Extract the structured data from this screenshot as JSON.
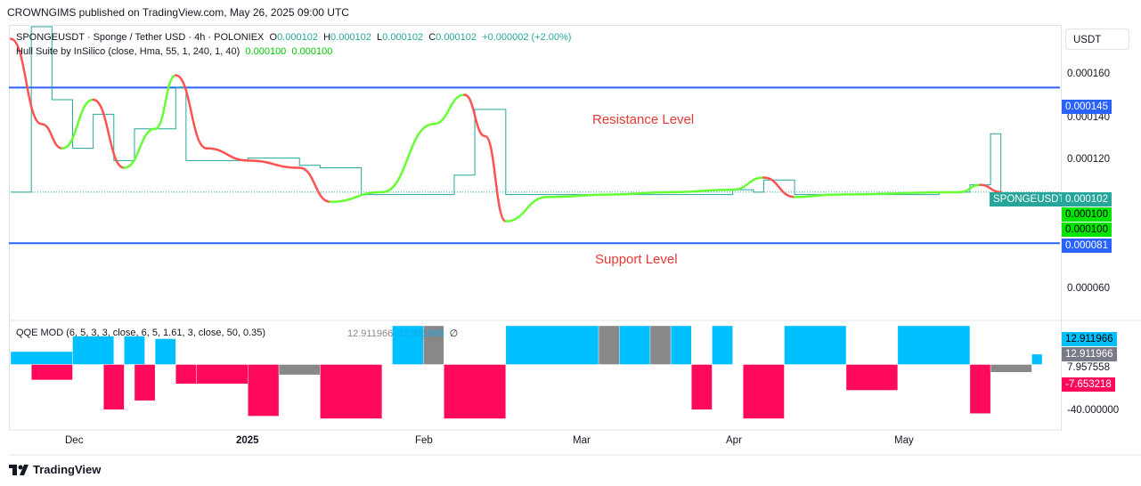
{
  "header": {
    "published": "CROWNGIMS published on TradingView.com, May 26, 2025 09:00 UTC"
  },
  "main_legend": {
    "symbol": "SPONGEUSDT · Sponge / Tether USD · 4h · POLONIEX",
    "o_label": "O",
    "o_value": "0.000102",
    "h_label": "H",
    "h_value": "0.000102",
    "l_label": "L",
    "l_value": "0.000102",
    "c_label": "C",
    "c_value": "0.000102",
    "change": "+0.000002 (+2.00%)"
  },
  "hull_legend": {
    "label": "Hull Suite by InSilico (close, Hma, 55, 1, 240, 1, 40)",
    "v1": "0.000100",
    "v2": "0.000100"
  },
  "qqe_legend": {
    "label": "QQE MOD (6, 5, 3, 3, close, 6, 5, 1.61, 3, close, 50, 0.35)",
    "v1": "12.911966",
    "v2": "12.911966",
    "v3": "∅"
  },
  "annotations": {
    "resistance": "Resistance Level",
    "support": "Support Level"
  },
  "price_axis": {
    "currency": "USDT",
    "ticks": [
      "0.000160",
      "0.000140",
      "0.000120",
      "0.000060"
    ],
    "resistance_badge": "0.000145",
    "support_badge": "0.000081",
    "symbol_badge_name": "SPONGEUSDT",
    "symbol_badge_value": "0.000102",
    "hull_badge_1": "0.000100",
    "hull_badge_2": "0.000100"
  },
  "qqe_axis": {
    "badge_1": "12.911966",
    "badge_2": "12.911966",
    "tick_1": "7.957558",
    "badge_3": "-7.653218",
    "tick_2": "-40.000000"
  },
  "time_axis": {
    "labels": [
      "Dec",
      "2025",
      "Feb",
      "Mar",
      "Apr",
      "May"
    ]
  },
  "footer": {
    "brand": "TradingView"
  },
  "colors": {
    "resistance_line": "#2962ff",
    "support_line": "#2962ff",
    "hull_up": "#66ff33",
    "hull_down": "#ff5252",
    "candle_up": "#26a69a",
    "candle_down": "#ef5350",
    "qqe_up": "#00bfff",
    "qqe_down": "#ff0a5a",
    "qqe_neutral": "#888888",
    "last_price": "#26a69a",
    "hull_badge": "#00e600"
  },
  "chart_data": {
    "type": "line",
    "price_ylim": [
      5e-05,
      0.00017
    ],
    "levels": {
      "resistance": 0.000145,
      "support": 8.1e-05,
      "last": 0.000102
    },
    "price_series": [
      {
        "t": 0,
        "v": 0.000102
      },
      {
        "t": 0.02,
        "v": 0.00017
      },
      {
        "t": 0.04,
        "v": 0.00014
      },
      {
        "t": 0.06,
        "v": 0.00012
      },
      {
        "t": 0.08,
        "v": 0.000134
      },
      {
        "t": 0.1,
        "v": 0.000115
      },
      {
        "t": 0.12,
        "v": 0.000128
      },
      {
        "t": 0.15,
        "v": 0.000128
      },
      {
        "t": 0.16,
        "v": 0.000145
      },
      {
        "t": 0.17,
        "v": 0.000115
      },
      {
        "t": 0.23,
        "v": 0.000116
      },
      {
        "t": 0.28,
        "v": 0.000113
      },
      {
        "t": 0.3,
        "v": 0.000112
      },
      {
        "t": 0.34,
        "v": 0.000101
      },
      {
        "t": 0.4,
        "v": 0.000101
      },
      {
        "t": 0.43,
        "v": 0.000109
      },
      {
        "t": 0.45,
        "v": 0.000136
      },
      {
        "t": 0.47,
        "v": 0.000136
      },
      {
        "t": 0.48,
        "v": 0.000101
      },
      {
        "t": 0.66,
        "v": 0.000101
      },
      {
        "t": 0.7,
        "v": 0.000103
      },
      {
        "t": 0.72,
        "v": 0.000102
      },
      {
        "t": 0.73,
        "v": 0.000107
      },
      {
        "t": 0.75,
        "v": 0.000107
      },
      {
        "t": 0.76,
        "v": 0.000101
      },
      {
        "t": 0.9,
        "v": 0.000102
      },
      {
        "t": 0.93,
        "v": 0.000105
      },
      {
        "t": 0.95,
        "v": 0.000126
      },
      {
        "t": 0.96,
        "v": 0.000102
      }
    ],
    "hull_series": [
      {
        "t": 0,
        "v": 0.000165
      },
      {
        "t": 0.03,
        "v": 0.00013
      },
      {
        "t": 0.05,
        "v": 0.00012
      },
      {
        "t": 0.08,
        "v": 0.00014
      },
      {
        "t": 0.11,
        "v": 0.000112
      },
      {
        "t": 0.14,
        "v": 0.000128
      },
      {
        "t": 0.16,
        "v": 0.00015
      },
      {
        "t": 0.19,
        "v": 0.00012
      },
      {
        "t": 0.23,
        "v": 0.000115
      },
      {
        "t": 0.28,
        "v": 0.000112
      },
      {
        "t": 0.31,
        "v": 9.8e-05
      },
      {
        "t": 0.36,
        "v": 0.000102
      },
      {
        "t": 0.41,
        "v": 0.00013
      },
      {
        "t": 0.44,
        "v": 0.000142
      },
      {
        "t": 0.46,
        "v": 0.000125
      },
      {
        "t": 0.48,
        "v": 9e-05
      },
      {
        "t": 0.52,
        "v": 0.0001
      },
      {
        "t": 0.58,
        "v": 0.000101
      },
      {
        "t": 0.64,
        "v": 0.000102
      },
      {
        "t": 0.7,
        "v": 0.000103
      },
      {
        "t": 0.73,
        "v": 0.000108
      },
      {
        "t": 0.76,
        "v": 0.0001
      },
      {
        "t": 0.8,
        "v": 0.000101
      },
      {
        "t": 0.92,
        "v": 0.000102
      },
      {
        "t": 0.94,
        "v": 0.000105
      },
      {
        "t": 0.96,
        "v": 0.000102
      }
    ],
    "qqe_ylim": [
      -50,
      30
    ],
    "qqe_segments": [
      {
        "t0": 0.0,
        "t1": 0.06,
        "v": 10,
        "c": "up"
      },
      {
        "t0": 0.02,
        "t1": 0.06,
        "v": -12,
        "c": "down"
      },
      {
        "t0": 0.06,
        "t1": 0.1,
        "v": 22,
        "c": "up"
      },
      {
        "t0": 0.09,
        "t1": 0.11,
        "v": -35,
        "c": "down"
      },
      {
        "t0": 0.11,
        "t1": 0.13,
        "v": 22,
        "c": "up"
      },
      {
        "t0": 0.12,
        "t1": 0.14,
        "v": -28,
        "c": "down"
      },
      {
        "t0": 0.14,
        "t1": 0.16,
        "v": 20,
        "c": "up"
      },
      {
        "t0": 0.16,
        "t1": 0.18,
        "v": -15,
        "c": "down"
      },
      {
        "t0": 0.18,
        "t1": 0.23,
        "v": -15,
        "c": "down"
      },
      {
        "t0": 0.23,
        "t1": 0.26,
        "v": -40,
        "c": "down"
      },
      {
        "t0": 0.26,
        "t1": 0.3,
        "v": -8,
        "c": "neutral"
      },
      {
        "t0": 0.3,
        "t1": 0.36,
        "v": -42,
        "c": "down"
      },
      {
        "t0": 0.37,
        "t1": 0.4,
        "v": 30,
        "c": "up"
      },
      {
        "t0": 0.4,
        "t1": 0.42,
        "v": 30,
        "c": "neutral"
      },
      {
        "t0": 0.42,
        "t1": 0.48,
        "v": -42,
        "c": "down"
      },
      {
        "t0": 0.48,
        "t1": 0.57,
        "v": 30,
        "c": "up"
      },
      {
        "t0": 0.57,
        "t1": 0.59,
        "v": 30,
        "c": "neutral"
      },
      {
        "t0": 0.59,
        "t1": 0.62,
        "v": 30,
        "c": "up"
      },
      {
        "t0": 0.62,
        "t1": 0.64,
        "v": 30,
        "c": "neutral"
      },
      {
        "t0": 0.64,
        "t1": 0.66,
        "v": 30,
        "c": "up"
      },
      {
        "t0": 0.66,
        "t1": 0.68,
        "v": -35,
        "c": "down"
      },
      {
        "t0": 0.68,
        "t1": 0.7,
        "v": 30,
        "c": "up"
      },
      {
        "t0": 0.71,
        "t1": 0.75,
        "v": -42,
        "c": "down"
      },
      {
        "t0": 0.75,
        "t1": 0.81,
        "v": 30,
        "c": "up"
      },
      {
        "t0": 0.81,
        "t1": 0.86,
        "v": -20,
        "c": "down"
      },
      {
        "t0": 0.86,
        "t1": 0.93,
        "v": 30,
        "c": "up"
      },
      {
        "t0": 0.93,
        "t1": 0.95,
        "v": -38,
        "c": "down"
      },
      {
        "t0": 0.95,
        "t1": 0.99,
        "v": -6,
        "c": "neutral"
      },
      {
        "t0": 0.99,
        "t1": 1.0,
        "v": 8,
        "c": "up"
      }
    ]
  }
}
